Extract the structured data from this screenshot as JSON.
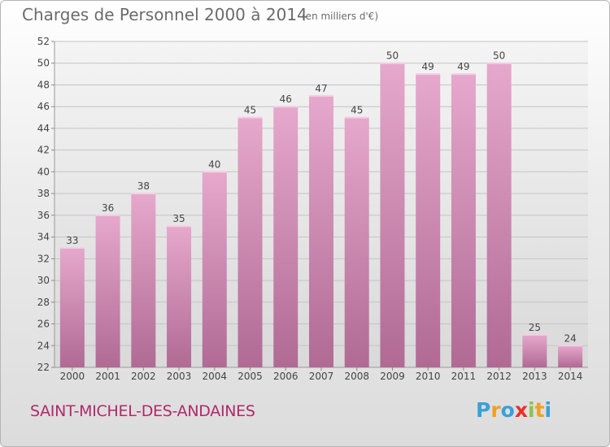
{
  "header": {
    "title": "Charges de Personnel 2000 à 2014",
    "subtitle": "(en milliers d'€)"
  },
  "footer": {
    "place": "SAINT-MICHEL-DES-ANDAINES",
    "logo_text": "Proxiti",
    "logo_letters": [
      {
        "ch": "P",
        "color": "#3aa0d8"
      },
      {
        "ch": "r",
        "color": "#f0a020"
      },
      {
        "ch": "o",
        "color": "#3aa0d8"
      },
      {
        "ch": "x",
        "color": "#e8302a"
      },
      {
        "ch": "i",
        "color": "#8bc34a"
      },
      {
        "ch": "t",
        "color": "#f0a020"
      },
      {
        "ch": "i",
        "color": "#3aa0d8"
      }
    ]
  },
  "chart_data": {
    "type": "bar",
    "title": "Charges de Personnel 2000 à 2014",
    "subtitle": "(en milliers d'€)",
    "categories": [
      "2000",
      "2001",
      "2002",
      "2003",
      "2004",
      "2005",
      "2006",
      "2007",
      "2008",
      "2009",
      "2010",
      "2011",
      "2012",
      "2013",
      "2014"
    ],
    "values": [
      33,
      36,
      38,
      35,
      40,
      45,
      46,
      47,
      45,
      50,
      49,
      49,
      50,
      25,
      24
    ],
    "ylim": [
      22,
      52
    ],
    "yticks": [
      22,
      24,
      26,
      28,
      30,
      32,
      34,
      36,
      38,
      40,
      42,
      44,
      46,
      48,
      50,
      52
    ],
    "grid": true,
    "bar_color_top": "#e6a8cc",
    "bar_color_bottom": "#b06a94"
  }
}
